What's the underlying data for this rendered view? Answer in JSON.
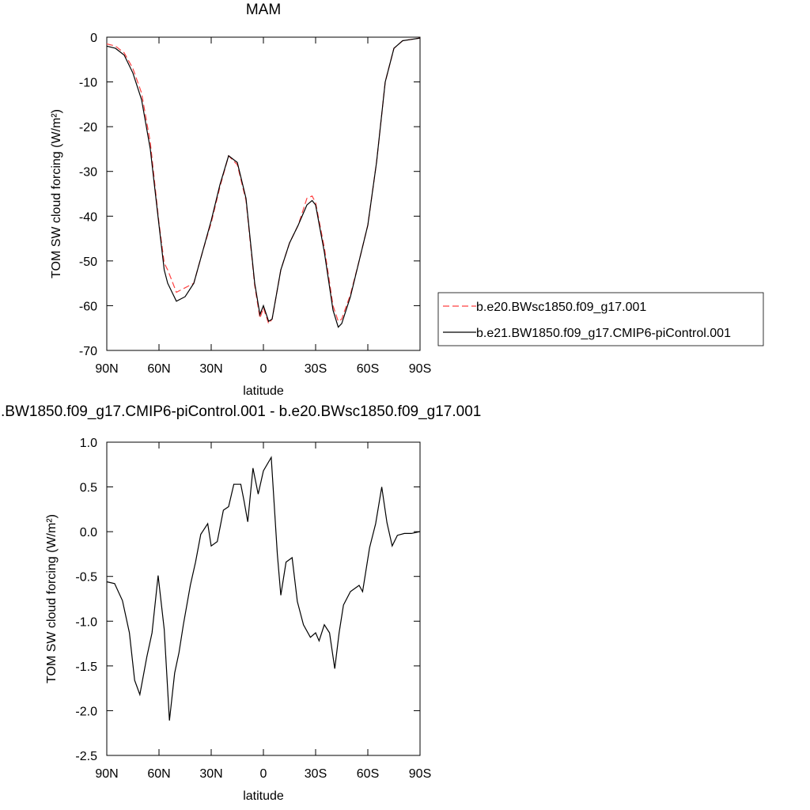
{
  "chart_data": [
    {
      "type": "line",
      "title": "MAM",
      "xlabel": "latitude",
      "ylabel": "TOM SW cloud forcing (W/m²)",
      "x": [
        90,
        85,
        80,
        75,
        70,
        65,
        60,
        57,
        55,
        50,
        45,
        40,
        35,
        30,
        25,
        20,
        15,
        10,
        5,
        2,
        0,
        -3,
        -5,
        -10,
        -15,
        -20,
        -25,
        -28,
        -30,
        -35,
        -40,
        -43,
        -45,
        -50,
        -55,
        -60,
        -65,
        -70,
        -75,
        -80,
        -85,
        -90
      ],
      "xlim": [
        90,
        -90
      ],
      "xticks": [
        {
          "value": 90,
          "label": "90N"
        },
        {
          "value": 60,
          "label": "60N"
        },
        {
          "value": 30,
          "label": "30N"
        },
        0,
        {
          "value": -30,
          "label": "30S"
        },
        {
          "value": -60,
          "label": "60S"
        },
        {
          "value": -90,
          "label": "90S"
        }
      ],
      "ylim": [
        -70,
        0
      ],
      "yticks": [
        0,
        -10,
        -20,
        -30,
        -40,
        -50,
        -60,
        -70
      ],
      "legend": "right",
      "series": [
        {
          "name": "b.e20.BWsc1850.f09_g17.001",
          "color": "#ff4040",
          "dash": true,
          "values": [
            -1.5,
            -2,
            -3.5,
            -7,
            -12.5,
            -23.5,
            -41.5,
            -50.5,
            -52,
            -57,
            -56,
            -55,
            -48,
            -41.5,
            -33.5,
            -26.5,
            -28.5,
            -36.5,
            -55.5,
            -62.8,
            -60.5,
            -64,
            -63,
            -52,
            -46,
            -42,
            -36,
            -35.5,
            -37,
            -47,
            -60,
            -63.5,
            -63,
            -57.5,
            -50,
            -42,
            -28,
            -10,
            -2.5,
            -0.8,
            -0.5,
            -0.2
          ]
        },
        {
          "name": "b.e21.BW1850.f09_g17.CMIP6-piControl.001",
          "color": "#000000",
          "dash": false,
          "values": [
            -2,
            -2.5,
            -4,
            -8,
            -14,
            -25,
            -42,
            -52,
            -55,
            -59,
            -58,
            -55,
            -48,
            -41,
            -33,
            -26.5,
            -28,
            -36,
            -55,
            -62,
            -60,
            -63.5,
            -63,
            -52,
            -46,
            -42,
            -37.5,
            -36.5,
            -37.5,
            -48,
            -61,
            -64.8,
            -64,
            -58,
            -50,
            -42,
            -28,
            -10,
            -2.5,
            -0.8,
            -0.5,
            -0.2
          ]
        }
      ]
    },
    {
      "type": "line",
      "title": ".BW1850.f09_g17.CMIP6-piControl.001 - b.e20.BWsc1850.f09_g17.001",
      "xlabel": "latitude",
      "ylabel": "TOM SW cloud forcing (W/m²)",
      "x": [
        90,
        85.5,
        81,
        77,
        74,
        71,
        67,
        64,
        60.5,
        57,
        54,
        51,
        48.5,
        46,
        42,
        39,
        36,
        32,
        30,
        26.5,
        23,
        20,
        17,
        13,
        11,
        9,
        6,
        3,
        0,
        -4.5,
        -8,
        -10,
        -13,
        -16.5,
        -19.5,
        -23,
        -27,
        -30,
        -32,
        -35,
        -38,
        -41,
        -43.5,
        -46,
        -50,
        -55,
        -57,
        -61,
        -64.5,
        -68,
        -71,
        -74,
        -77,
        -81,
        -85,
        -90
      ],
      "xlim": [
        90,
        -90
      ],
      "xticks": [
        {
          "value": 90,
          "label": "90N"
        },
        {
          "value": 60,
          "label": "60N"
        },
        {
          "value": 30,
          "label": "30N"
        },
        0,
        {
          "value": -30,
          "label": "30S"
        },
        {
          "value": -60,
          "label": "60S"
        },
        {
          "value": -90,
          "label": "90S"
        }
      ],
      "ylim": [
        -2.5,
        1
      ],
      "yticks": [
        {
          "value": 1,
          "label": "1.0"
        },
        0.5,
        {
          "value": 0,
          "label": "0.0"
        },
        -0.5,
        {
          "value": -1,
          "label": "-1.0"
        },
        -1.5,
        {
          "value": -2,
          "label": "-2.0"
        },
        -2.5
      ],
      "series": [
        {
          "color": "#000000",
          "values": [
            -0.56,
            -0.58,
            -0.77,
            -1.13,
            -1.66,
            -1.82,
            -1.4,
            -1.13,
            -0.49,
            -1.09,
            -2.11,
            -1.58,
            -1.35,
            -1.04,
            -0.6,
            -0.34,
            -0.03,
            0.09,
            -0.16,
            -0.11,
            0.24,
            0.28,
            0.53,
            0.53,
            0.33,
            0.11,
            0.71,
            0.42,
            0.68,
            0.83,
            -0.25,
            -0.71,
            -0.34,
            -0.29,
            -0.78,
            -1.04,
            -1.18,
            -1.13,
            -1.22,
            -1.04,
            -1.13,
            -1.53,
            -1.13,
            -0.82,
            -0.67,
            -0.6,
            -0.67,
            -0.18,
            0.09,
            0.5,
            0.1,
            -0.16,
            -0.04,
            -0.02,
            -0.02,
            0
          ]
        }
      ]
    }
  ]
}
